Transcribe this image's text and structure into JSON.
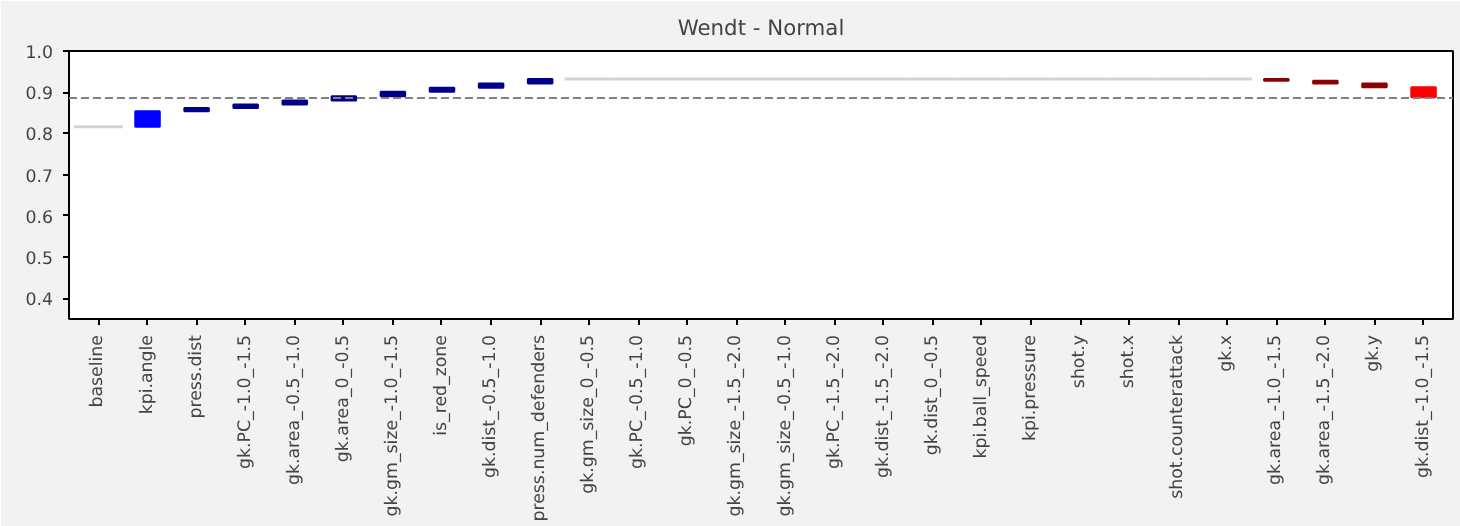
{
  "chart_data": {
    "type": "bar",
    "title": "Wendt - Normal",
    "categories": [
      "baseline",
      "kpi.angle",
      "press.dist",
      "gk.PC_-1.0_-1.5",
      "gk.area_-0.5_-1.0",
      "gk.area_0_-0.5",
      "gk.gm_size_-1.0_-1.5",
      "is_red_zone",
      "gk.dist_-0.5_-1.0",
      "press.num_defenders",
      "gk.gm_size_0_-0.5",
      "gk.PC_-0.5_-1.0",
      "gk.PC_0_-0.5",
      "gk.gm_size_-1.5_-2.0",
      "gk.gm_size_-0.5_-1.0",
      "gk.PC_-1.5_-2.0",
      "gk.dist_-1.5_-2.0",
      "gk.dist_0_-0.5",
      "kpi.ball_speed",
      "kpi.pressure",
      "shot.y",
      "shot.x",
      "shot.counterattack",
      "gk.x",
      "gk.area_-1.0_-1.5",
      "gk.area_-1.5_-2.0",
      "gk.y",
      "gk.dist_-1.0_-1.5"
    ],
    "base": [
      0.816,
      0.816,
      0.854,
      0.862,
      0.87,
      0.88,
      0.89,
      0.901,
      0.911,
      0.921,
      0.932,
      0.932,
      0.932,
      0.932,
      0.932,
      0.932,
      0.932,
      0.932,
      0.932,
      0.932,
      0.932,
      0.932,
      0.932,
      0.932,
      0.932,
      0.928,
      0.921,
      0.912
    ],
    "values": [
      0,
      0.038,
      0.008,
      0.008,
      0.01,
      0.01,
      0.011,
      0.01,
      0.01,
      0.011,
      0,
      0,
      0,
      0,
      0,
      0,
      0,
      0,
      0,
      0,
      0,
      0,
      0,
      0,
      -0.004,
      -0.007,
      -0.009,
      -0.024
    ],
    "colors": [
      "#d3d3d3",
      "#0000ff",
      "#00008b",
      "#00008b",
      "#00008b",
      "#00008b",
      "#00008b",
      "#00008b",
      "#00008b",
      "#00008b",
      "#d3d3d3",
      "#d3d3d3",
      "#d3d3d3",
      "#d3d3d3",
      "#d3d3d3",
      "#d3d3d3",
      "#d3d3d3",
      "#d3d3d3",
      "#d3d3d3",
      "#d3d3d3",
      "#d3d3d3",
      "#d3d3d3",
      "#d3d3d3",
      "#d3d3d3",
      "#8b0000",
      "#8b0000",
      "#8b0000",
      "#ff0000"
    ],
    "ylim": [
      0.35,
      1.0
    ],
    "yticks": [
      0.4,
      0.5,
      0.6,
      0.7,
      0.8,
      0.9,
      {
        "value": 1.0,
        "label": "1.0"
      }
    ],
    "ref_lines": [
      {
        "axis": "y",
        "value": 0.886,
        "label": null,
        "color": "#808080",
        "line_style": "dashed"
      }
    ],
    "grid": false
  }
}
